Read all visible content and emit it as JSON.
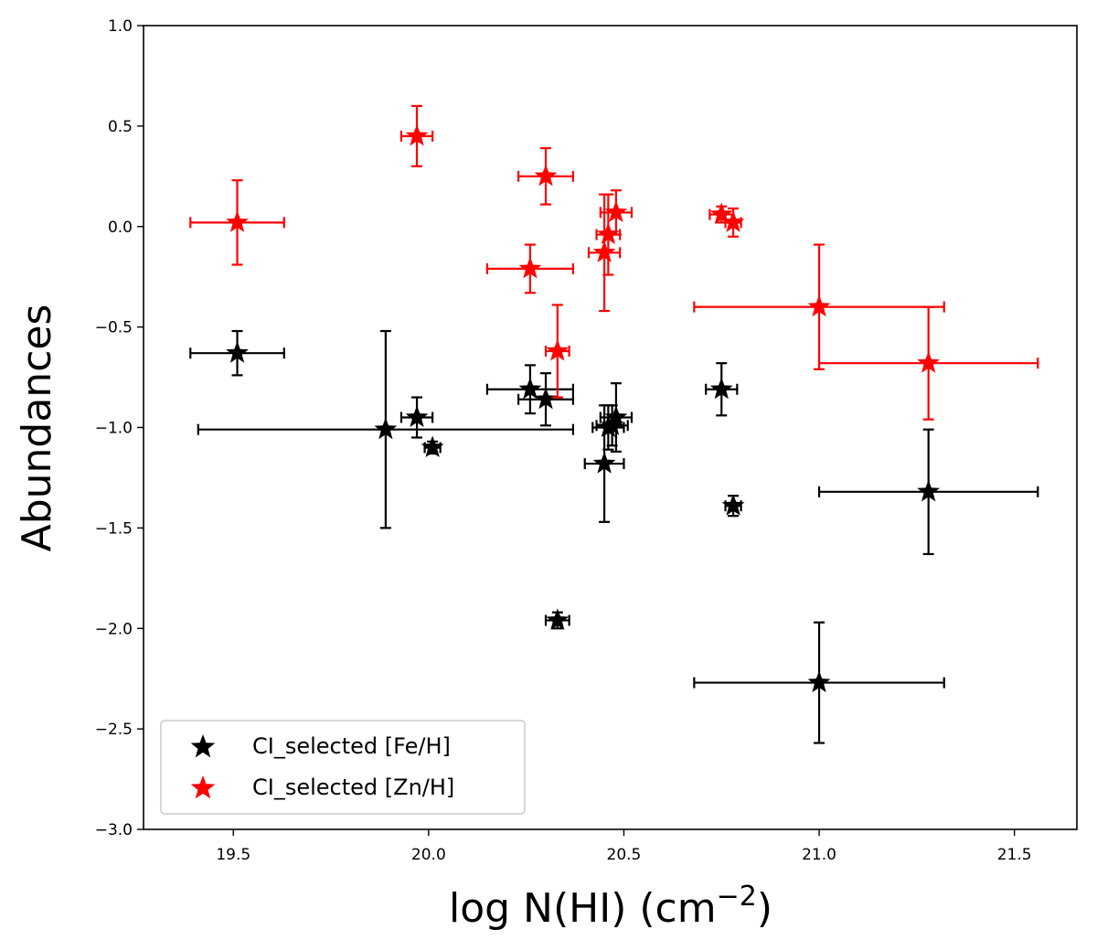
{
  "chart_data": {
    "type": "scatter",
    "title": "",
    "xlabel": "log N(HI) (cm",
    "xlabel_sup": "−2",
    "xlabel_close": ")",
    "ylabel": "Abundances",
    "xlim": [
      19.27,
      21.66
    ],
    "ylim": [
      -3.0,
      1.0
    ],
    "xticks": [
      19.5,
      20.0,
      20.5,
      21.0,
      21.5
    ],
    "xtick_labels": [
      "19.5",
      "20.0",
      "20.5",
      "21.0",
      "21.5"
    ],
    "yticks": [
      1.0,
      0.5,
      0.0,
      -0.5,
      -1.0,
      -1.5,
      -2.0,
      -2.5,
      -3.0
    ],
    "ytick_labels": [
      "1.0",
      "0.5",
      "0.0",
      "−0.5",
      "−1.0",
      "−1.5",
      "−2.0",
      "−2.5",
      "−3.0"
    ],
    "legend_position": "bottom-left",
    "series": [
      {
        "name": "CI_selected [Fe/H]",
        "color": "#000000",
        "marker": "star",
        "points": [
          {
            "x": 19.51,
            "y": -0.63,
            "xerr": 0.12,
            "yerr": 0.11
          },
          {
            "x": 19.89,
            "y": -1.01,
            "xerr": 0.48,
            "yerr": 0.49
          },
          {
            "x": 19.97,
            "y": -0.95,
            "xerr": 0.04,
            "yerr": 0.1
          },
          {
            "x": 20.01,
            "y": -1.1,
            "xerr": 0.02,
            "yerr": 0.03
          },
          {
            "x": 20.26,
            "y": -0.81,
            "xerr": 0.11,
            "yerr": 0.12
          },
          {
            "x": 20.3,
            "y": -0.86,
            "xerr": 0.07,
            "yerr": 0.13
          },
          {
            "x": 20.33,
            "y": -1.96,
            "xerr": 0.03,
            "yerr": 0.04
          },
          {
            "x": 20.45,
            "y": -1.18,
            "xerr": 0.05,
            "yerr": 0.29
          },
          {
            "x": 20.46,
            "y": -1.0,
            "xerr": 0.04,
            "yerr": 0.11
          },
          {
            "x": 20.47,
            "y": -0.99,
            "xerr": 0.04,
            "yerr": 0.1
          },
          {
            "x": 20.48,
            "y": -0.95,
            "xerr": 0.04,
            "yerr": 0.17
          },
          {
            "x": 20.75,
            "y": -0.81,
            "xerr": 0.04,
            "yerr": 0.13
          },
          {
            "x": 20.78,
            "y": -1.39,
            "xerr": 0.02,
            "yerr": 0.05
          },
          {
            "x": 21.0,
            "y": -2.27,
            "xerr": 0.32,
            "yerr": 0.3
          },
          {
            "x": 21.28,
            "y": -1.32,
            "xerr": 0.28,
            "yerr": 0.31
          }
        ]
      },
      {
        "name": "CI_selected [Zn/H]",
        "color": "#ff0000",
        "marker": "star",
        "points": [
          {
            "x": 19.51,
            "y": 0.02,
            "xerr": 0.12,
            "yerr": 0.21
          },
          {
            "x": 19.97,
            "y": 0.45,
            "xerr": 0.04,
            "yerr": 0.15
          },
          {
            "x": 20.26,
            "y": -0.21,
            "xerr": 0.11,
            "yerr": 0.12
          },
          {
            "x": 20.3,
            "y": 0.25,
            "xerr": 0.07,
            "yerr": 0.14
          },
          {
            "x": 20.33,
            "y": -0.62,
            "xerr": 0.03,
            "yerr": 0.23
          },
          {
            "x": 20.45,
            "y": -0.13,
            "xerr": 0.04,
            "yerr": 0.29
          },
          {
            "x": 20.46,
            "y": -0.04,
            "xerr": 0.03,
            "yerr": 0.2
          },
          {
            "x": 20.48,
            "y": 0.07,
            "xerr": 0.04,
            "yerr": 0.11
          },
          {
            "x": 20.75,
            "y": 0.06,
            "xerr": 0.03,
            "yerr": 0.04
          },
          {
            "x": 20.78,
            "y": 0.02,
            "xerr": 0.02,
            "yerr": 0.07
          },
          {
            "x": 21.0,
            "y": -0.4,
            "xerr": 0.32,
            "yerr": 0.31
          },
          {
            "x": 21.28,
            "y": -0.68,
            "xerr": 0.28,
            "yerr": 0.28
          }
        ]
      }
    ]
  }
}
